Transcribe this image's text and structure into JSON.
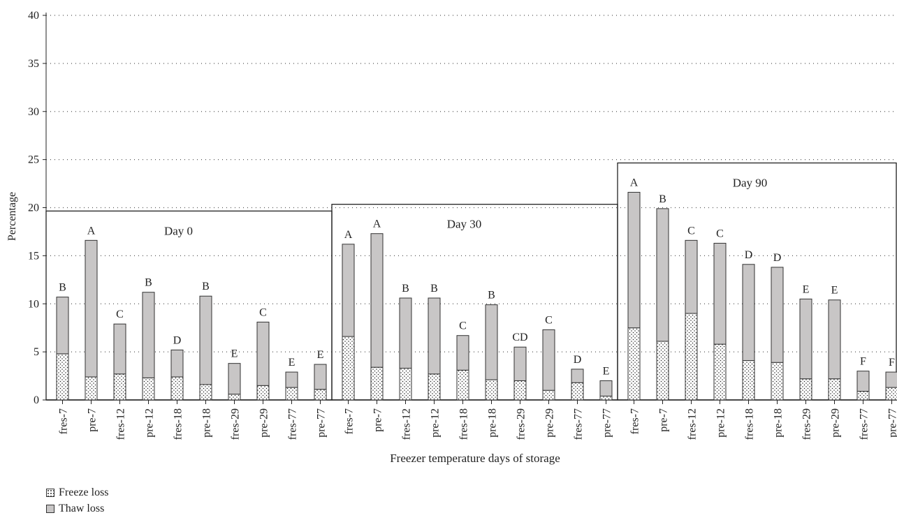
{
  "chart_data": {
    "type": "bar",
    "stacked": true,
    "xlabel": "Freezer temperature days of storage",
    "ylabel": "Percentage",
    "ylim": [
      0,
      40
    ],
    "yticks": [
      0,
      5,
      10,
      15,
      20,
      25,
      30,
      35,
      40
    ],
    "grid": "horizontal dotted",
    "legend_placement": "bottom-left",
    "series": [
      {
        "name": "Freeze loss",
        "color": "#ffffff",
        "pattern": "dots"
      },
      {
        "name": "Thaw loss",
        "color": "#c8c6c6",
        "pattern": "solid"
      }
    ],
    "groups": [
      {
        "label": "Day 0",
        "categories": [
          "fres-7",
          "pre-7",
          "fres-12",
          "pre-12",
          "fres-18",
          "pre-18",
          "fres-29",
          "pre-29",
          "fres-77",
          "pre-77"
        ],
        "freeze": [
          4.8,
          2.4,
          2.7,
          2.3,
          2.4,
          1.6,
          0.6,
          1.5,
          1.3,
          1.1
        ],
        "thaw": [
          5.9,
          14.2,
          5.2,
          8.9,
          2.8,
          9.2,
          3.2,
          6.6,
          1.6,
          2.6
        ],
        "letters": [
          "B",
          "A",
          "C",
          "B",
          "D",
          "B",
          "E",
          "C",
          "E",
          "E"
        ]
      },
      {
        "label": "Day 30",
        "categories": [
          "fres-7",
          "pre-7",
          "fres-12",
          "pre-12",
          "fres-18",
          "pre-18",
          "fres-29",
          "pre-29",
          "fres-77",
          "pre-77"
        ],
        "freeze": [
          6.6,
          3.4,
          3.3,
          2.7,
          3.1,
          2.1,
          2.0,
          1.0,
          1.8,
          0.4
        ],
        "thaw": [
          9.6,
          13.9,
          7.3,
          7.9,
          3.6,
          7.8,
          3.5,
          6.3,
          1.4,
          1.6
        ],
        "letters": [
          "A",
          "A",
          "B",
          "B",
          "C",
          "B",
          "CD",
          "C",
          "D",
          "E"
        ]
      },
      {
        "label": "Day 90",
        "categories": [
          "fres-7",
          "pre-7",
          "fres-12",
          "pre-12",
          "fres-18",
          "pre-18",
          "fres-29",
          "pre-29",
          "fres-77",
          "pre-77"
        ],
        "freeze": [
          7.5,
          6.1,
          9.0,
          5.8,
          4.1,
          3.9,
          2.2,
          2.2,
          0.9,
          1.3
        ],
        "thaw": [
          14.1,
          13.8,
          7.6,
          10.5,
          10.0,
          9.9,
          8.3,
          8.2,
          2.1,
          1.6
        ],
        "letters": [
          "A",
          "B",
          "C",
          "C",
          "D",
          "D",
          "E",
          "E",
          "F",
          "F"
        ]
      }
    ]
  },
  "legend": {
    "freeze_label": "Freeze loss",
    "thaw_label": "Thaw loss"
  }
}
